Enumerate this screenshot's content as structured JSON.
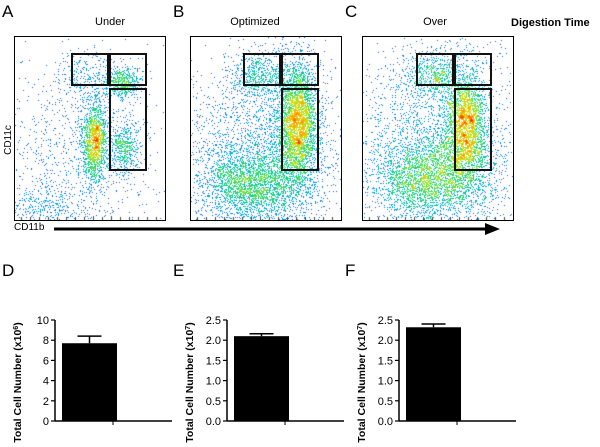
{
  "flow": {
    "heading": "Digestion Time",
    "x_axis_label": "CD11b",
    "y_axis_label": "CD11c",
    "panels": [
      {
        "letter": "A",
        "title": "Under"
      },
      {
        "letter": "B",
        "title": "Optimized"
      },
      {
        "letter": "C",
        "title": "Over"
      }
    ]
  },
  "chart_data": [
    {
      "type": "bar",
      "panel": "D",
      "categories": [
        ""
      ],
      "values": [
        7.7
      ],
      "error": [
        0.7
      ],
      "ylabel_main": "Total Cell Number (x10",
      "ylabel_exp": "6",
      "ylabel_close": ")",
      "ylim": [
        0,
        10
      ],
      "yticks": [
        "0",
        "2",
        "4",
        "6",
        "8",
        "10"
      ],
      "ytick_values": [
        0,
        2,
        4,
        6,
        8,
        10
      ],
      "bar_color": "#000000"
    },
    {
      "type": "bar",
      "panel": "E",
      "categories": [
        ""
      ],
      "values": [
        2.1
      ],
      "error": [
        0.06
      ],
      "ylabel_main": "Total Cell Number (x10",
      "ylabel_exp": "7",
      "ylabel_close": ")",
      "ylim": [
        0,
        2.5
      ],
      "yticks": [
        "0.0",
        "0.5",
        "1.0",
        "1.5",
        "2.0",
        "2.5"
      ],
      "ytick_values": [
        0,
        0.5,
        1.0,
        1.5,
        2.0,
        2.5
      ],
      "bar_color": "#000000"
    },
    {
      "type": "bar",
      "panel": "F",
      "categories": [
        ""
      ],
      "values": [
        2.32
      ],
      "error": [
        0.08
      ],
      "ylabel_main": "Total Cell Number (x10",
      "ylabel_exp": "7",
      "ylabel_close": ")",
      "ylim": [
        0,
        2.5
      ],
      "yticks": [
        "0.0",
        "0.5",
        "1.0",
        "1.5",
        "2.0",
        "2.5"
      ],
      "ytick_values": [
        0,
        0.5,
        1.0,
        1.5,
        2.0,
        2.5
      ],
      "bar_color": "#000000"
    }
  ]
}
